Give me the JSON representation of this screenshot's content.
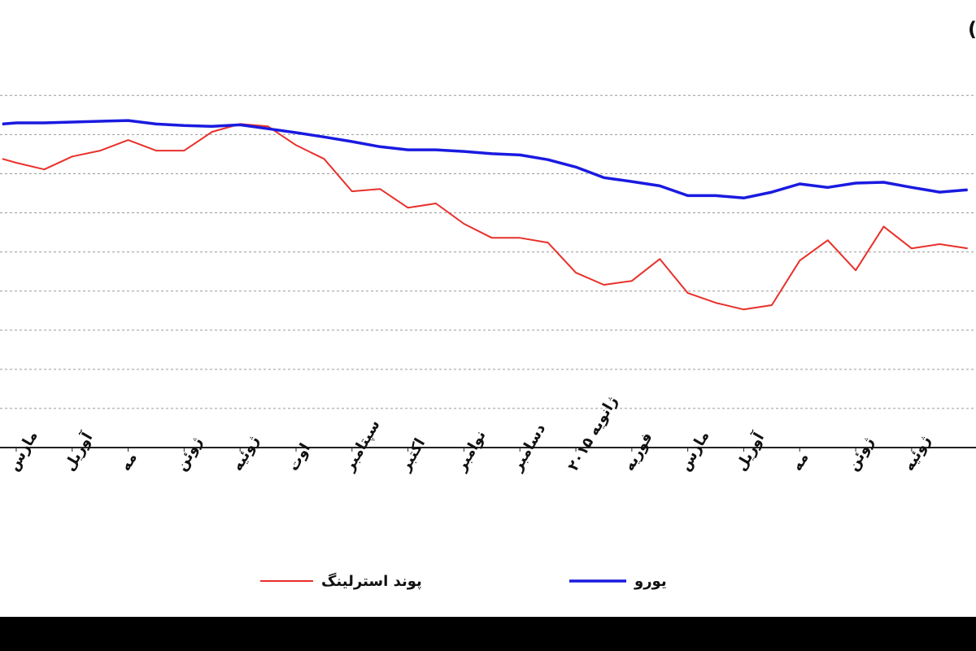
{
  "chart_data": {
    "type": "line",
    "title": "دار قیمت روزانه  یورو و پوند استرلینگ در مقابل دلار(آخر وقت بازار نیویورک)",
    "x": [
      -0.25,
      0,
      0.5,
      1,
      1.5,
      2,
      2.5,
      3,
      3.5,
      4,
      4.5,
      5,
      5.5,
      6,
      6.5,
      7,
      7.5,
      8,
      8.5,
      9,
      9.5,
      10,
      10.5,
      11,
      11.5,
      12,
      12.5,
      13,
      13.5,
      14,
      14.5,
      15,
      15.5,
      16,
      16.5,
      17
    ],
    "series": [
      {
        "name": "پوند استرلینگ",
        "color": "#e8302a",
        "values": [
          7.38,
          7.28,
          7.11,
          7.44,
          7.59,
          7.86,
          7.59,
          7.59,
          8.07,
          8.27,
          8.21,
          7.73,
          7.38,
          6.55,
          6.61,
          6.13,
          6.24,
          5.72,
          5.36,
          5.36,
          5.24,
          4.47,
          4.16,
          4.26,
          4.82,
          3.95,
          3.7,
          3.53,
          3.64,
          4.78,
          5.3,
          4.53,
          5.65,
          5.09,
          5.2,
          5.09
        ]
      },
      {
        "name": "یورو",
        "color": "#1a1ae0",
        "values": [
          8.27,
          8.3,
          8.3,
          8.32,
          8.34,
          8.36,
          8.27,
          8.23,
          8.21,
          8.25,
          8.15,
          8.05,
          7.94,
          7.82,
          7.69,
          7.61,
          7.61,
          7.57,
          7.51,
          7.48,
          7.36,
          7.17,
          6.9,
          6.8,
          6.69,
          6.44,
          6.44,
          6.38,
          6.53,
          6.74,
          6.65,
          6.76,
          6.78,
          6.65,
          6.53,
          6.59
        ]
      }
    ],
    "xlim": [
      -0.29,
      17.15
    ],
    "xticks": [
      {
        "value": 0,
        "label": "مارس"
      },
      {
        "value": 1,
        "label": "آوریل"
      },
      {
        "value": 2,
        "label": "مه"
      },
      {
        "value": 3,
        "label": "ژوئن"
      },
      {
        "value": 4,
        "label": "ژوئیه"
      },
      {
        "value": 5,
        "label": "اوت"
      },
      {
        "value": 6,
        "label": "سپتامبر"
      },
      {
        "value": 7,
        "label": "اکتبر"
      },
      {
        "value": 8,
        "label": "نوامبر"
      },
      {
        "value": 9,
        "label": "دسامبر"
      },
      {
        "value": 10,
        "label": "ژانویه ۲۰۱۵"
      },
      {
        "value": 11,
        "label": "فوریه"
      },
      {
        "value": 12,
        "label": "مارس"
      },
      {
        "value": 13,
        "label": "آوریل"
      },
      {
        "value": 14,
        "label": "مه"
      },
      {
        "value": 15,
        "label": "ژوئن"
      },
      {
        "value": 16,
        "label": "ژوئیه"
      }
    ],
    "ylim": [
      0,
      9.36
    ],
    "yticks": [
      1,
      2,
      3,
      4,
      5,
      6,
      7,
      8,
      9
    ],
    "grid": true
  }
}
